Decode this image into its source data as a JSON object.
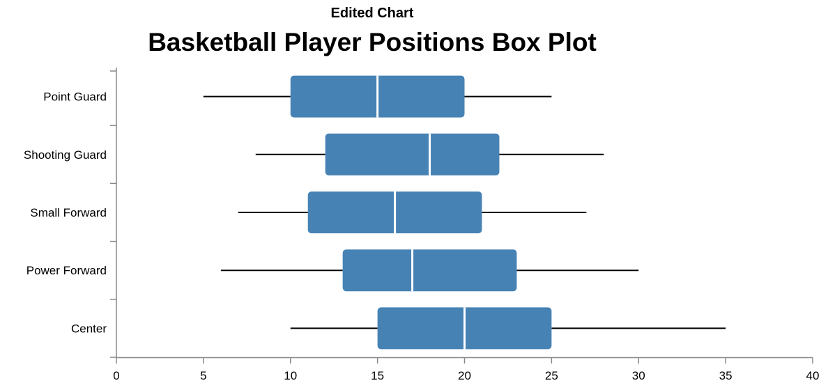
{
  "chart_data": {
    "type": "boxplot",
    "subtitle": "Edited Chart",
    "title": "Basketball Player Positions Box Plot",
    "xlabel": "",
    "ylabel": "",
    "xlim": [
      0,
      40
    ],
    "x_ticks": [
      0,
      5,
      10,
      15,
      20,
      25,
      30,
      35,
      40
    ],
    "grid": false,
    "box_color": "#4682b4",
    "median_color": "#ffffff",
    "whisker_color": "#000000",
    "categories": [
      "Point Guard",
      "Shooting Guard",
      "Small Forward",
      "Power Forward",
      "Center"
    ],
    "boxes": [
      {
        "category": "Point Guard",
        "min": 5,
        "q1": 10,
        "median": 15,
        "q3": 20,
        "max": 25
      },
      {
        "category": "Shooting Guard",
        "min": 8,
        "q1": 12,
        "median": 18,
        "q3": 22,
        "max": 28
      },
      {
        "category": "Small Forward",
        "min": 7,
        "q1": 11,
        "median": 16,
        "q3": 21,
        "max": 27
      },
      {
        "category": "Power Forward",
        "min": 6,
        "q1": 13,
        "median": 17,
        "q3": 23,
        "max": 30
      },
      {
        "category": "Center",
        "min": 10,
        "q1": 15,
        "median": 20,
        "q3": 25,
        "max": 35
      }
    ]
  }
}
